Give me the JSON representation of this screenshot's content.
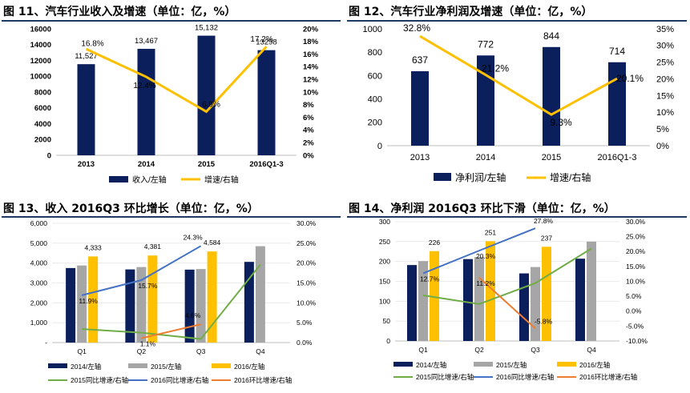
{
  "colors": {
    "navy": "#0b1f5c",
    "gold": "#ffc000",
    "gray": "#a6a6a6",
    "green": "#70ad47",
    "blue": "#4472c4",
    "orange": "#ed7d31",
    "rule": "#1f3864"
  },
  "chart_data": [
    {
      "title": "图 11、汽车行业收入及增速（单位：亿，%）",
      "type": "bar",
      "categories": [
        "2013",
        "2014",
        "2015",
        "2016Q1-3"
      ],
      "ylim": [
        0,
        16000
      ],
      "y_ticks": [
        "0",
        "2000",
        "4000",
        "6000",
        "8000",
        "10000",
        "12000",
        "14000",
        "16000"
      ],
      "y2lim": [
        0,
        20
      ],
      "y2_ticks": [
        "0%",
        "2%",
        "4%",
        "6%",
        "8%",
        "10%",
        "12%",
        "14%",
        "16%",
        "18%",
        "20%"
      ],
      "series": [
        {
          "name": "收入/左轴",
          "kind": "bar",
          "axis": "left",
          "color": "#0b1f5c",
          "values": [
            11527,
            13467,
            15132,
            13298
          ],
          "labels": [
            "11,527",
            "13,467",
            "15,132",
            "13298"
          ]
        },
        {
          "name": "增速/右轴",
          "kind": "line",
          "axis": "right",
          "color": "#ffc000",
          "values": [
            16.8,
            12.4,
            6.9,
            17.2
          ],
          "labels": [
            "16.8%",
            "12.4%",
            "6.9%",
            "17.2%"
          ]
        }
      ],
      "legend_position": "bottom"
    },
    {
      "title": "图 12、汽车行业净利润及增速（单位：亿，%）",
      "type": "bar",
      "categories": [
        "2013",
        "2014",
        "2015",
        "2016Q1-3"
      ],
      "ylim": [
        0,
        1000
      ],
      "y_ticks": [
        "0",
        "200",
        "400",
        "600",
        "800",
        "1000"
      ],
      "y2lim": [
        0,
        35
      ],
      "y2_ticks": [
        "0%",
        "5%",
        "10%",
        "15%",
        "20%",
        "25%",
        "30%",
        "35%"
      ],
      "series": [
        {
          "name": "净利润/左轴",
          "kind": "bar",
          "axis": "left",
          "color": "#0b1f5c",
          "values": [
            637,
            772,
            844,
            714
          ],
          "labels": [
            "637",
            "772",
            "844",
            "714"
          ]
        },
        {
          "name": "增速/右轴",
          "kind": "line",
          "axis": "right",
          "color": "#ffc000",
          "values": [
            32.8,
            21.2,
            9.3,
            20.1
          ],
          "labels": [
            "32.8%",
            "21.2%",
            "9.3%",
            "20.1%"
          ]
        }
      ],
      "legend_position": "bottom"
    },
    {
      "title": "图 13、收入 2016Q3 环比增长（单位：亿，%）",
      "type": "bar",
      "categories": [
        "Q1",
        "Q2",
        "Q3",
        "Q4"
      ],
      "ylim": [
        0,
        6000
      ],
      "y_ticks": [
        "-",
        "1,000",
        "2,000",
        "3,000",
        "4,000",
        "5,000",
        "6,000"
      ],
      "y2lim": [
        0,
        30
      ],
      "y2_ticks": [
        "0.0%",
        "5.0%",
        "10.0%",
        "15.0%",
        "20.0%",
        "25.0%",
        "30.0%"
      ],
      "series": [
        {
          "name": "2014/左轴",
          "kind": "bar",
          "axis": "left",
          "color": "#0b1f5c",
          "values": [
            3750,
            3680,
            3670,
            4060
          ],
          "labels": [
            "",
            "",
            "",
            ""
          ]
        },
        {
          "name": "2015/左轴",
          "kind": "bar",
          "axis": "left",
          "color": "#a6a6a6",
          "values": [
            3880,
            3800,
            3700,
            4850
          ],
          "labels": [
            "",
            "",
            "",
            ""
          ]
        },
        {
          "name": "2016/左轴",
          "kind": "bar",
          "axis": "left",
          "color": "#ffc000",
          "values": [
            4333,
            4381,
            4584,
            null
          ],
          "labels": [
            "4,333",
            "4,381",
            "4,584",
            ""
          ]
        },
        {
          "name": "2015同比增速/右轴",
          "kind": "line",
          "axis": "right",
          "color": "#70ad47",
          "values": [
            3.4,
            2.5,
            0.9,
            19.6
          ],
          "labels": [
            "",
            "",
            "",
            ""
          ]
        },
        {
          "name": "2016同比增速/右轴",
          "kind": "line",
          "axis": "right",
          "color": "#4472c4",
          "values": [
            11.9,
            15.7,
            24.3,
            null
          ],
          "labels": [
            "11.9%",
            "15.7%",
            "24.3%",
            ""
          ]
        },
        {
          "name": "2016环比增速/右轴",
          "kind": "line",
          "axis": "right",
          "color": "#ed7d31",
          "values": [
            null,
            1.1,
            4.6,
            null
          ],
          "labels": [
            "",
            "1.1%",
            "4.6%",
            ""
          ]
        }
      ],
      "legend_position": "bottom"
    },
    {
      "title": "图 14、净利润 2016Q3 环比下滑（单位：亿，%）",
      "type": "bar",
      "categories": [
        "Q1",
        "Q2",
        "Q3",
        "Q4"
      ],
      "ylim": [
        0,
        300
      ],
      "y_ticks": [
        "0",
        "50",
        "100",
        "150",
        "200",
        "250",
        "300"
      ],
      "y2lim": [
        -10,
        30
      ],
      "y2_ticks": [
        "-10.0%",
        "-5.0%",
        "0.0%",
        "5.0%",
        "10.0%",
        "15.0%",
        "20.0%",
        "25.0%",
        "30.0%"
      ],
      "series": [
        {
          "name": "2014/左轴",
          "kind": "bar",
          "axis": "left",
          "color": "#0b1f5c",
          "values": [
            191,
            206,
            170,
            207
          ],
          "labels": [
            "",
            "",
            "",
            ""
          ]
        },
        {
          "name": "2015/左轴",
          "kind": "bar",
          "axis": "left",
          "color": "#a6a6a6",
          "values": [
            201,
            211,
            186,
            250
          ],
          "labels": [
            "",
            "",
            "",
            ""
          ]
        },
        {
          "name": "2016/左轴",
          "kind": "bar",
          "axis": "left",
          "color": "#ffc000",
          "values": [
            226,
            251,
            237,
            null
          ],
          "labels": [
            "226",
            "251",
            "237",
            ""
          ]
        },
        {
          "name": "2015同比增速/右轴",
          "kind": "line",
          "axis": "right",
          "color": "#70ad47",
          "values": [
            5.3,
            2.4,
            9.4,
            21.0
          ],
          "labels": [
            "",
            "",
            "",
            ""
          ]
        },
        {
          "name": "2016同比增速/右轴",
          "kind": "line",
          "axis": "right",
          "color": "#4472c4",
          "values": [
            12.7,
            20.3,
            27.8,
            null
          ],
          "labels": [
            "12.7%",
            "20.3%",
            "27.8%",
            ""
          ]
        },
        {
          "name": "2016环比增速/右轴",
          "kind": "line",
          "axis": "right",
          "color": "#ed7d31",
          "values": [
            null,
            11.2,
            -5.8,
            null
          ],
          "labels": [
            "",
            "11.2%",
            "-5.8%",
            ""
          ]
        }
      ],
      "legend_position": "bottom"
    }
  ]
}
